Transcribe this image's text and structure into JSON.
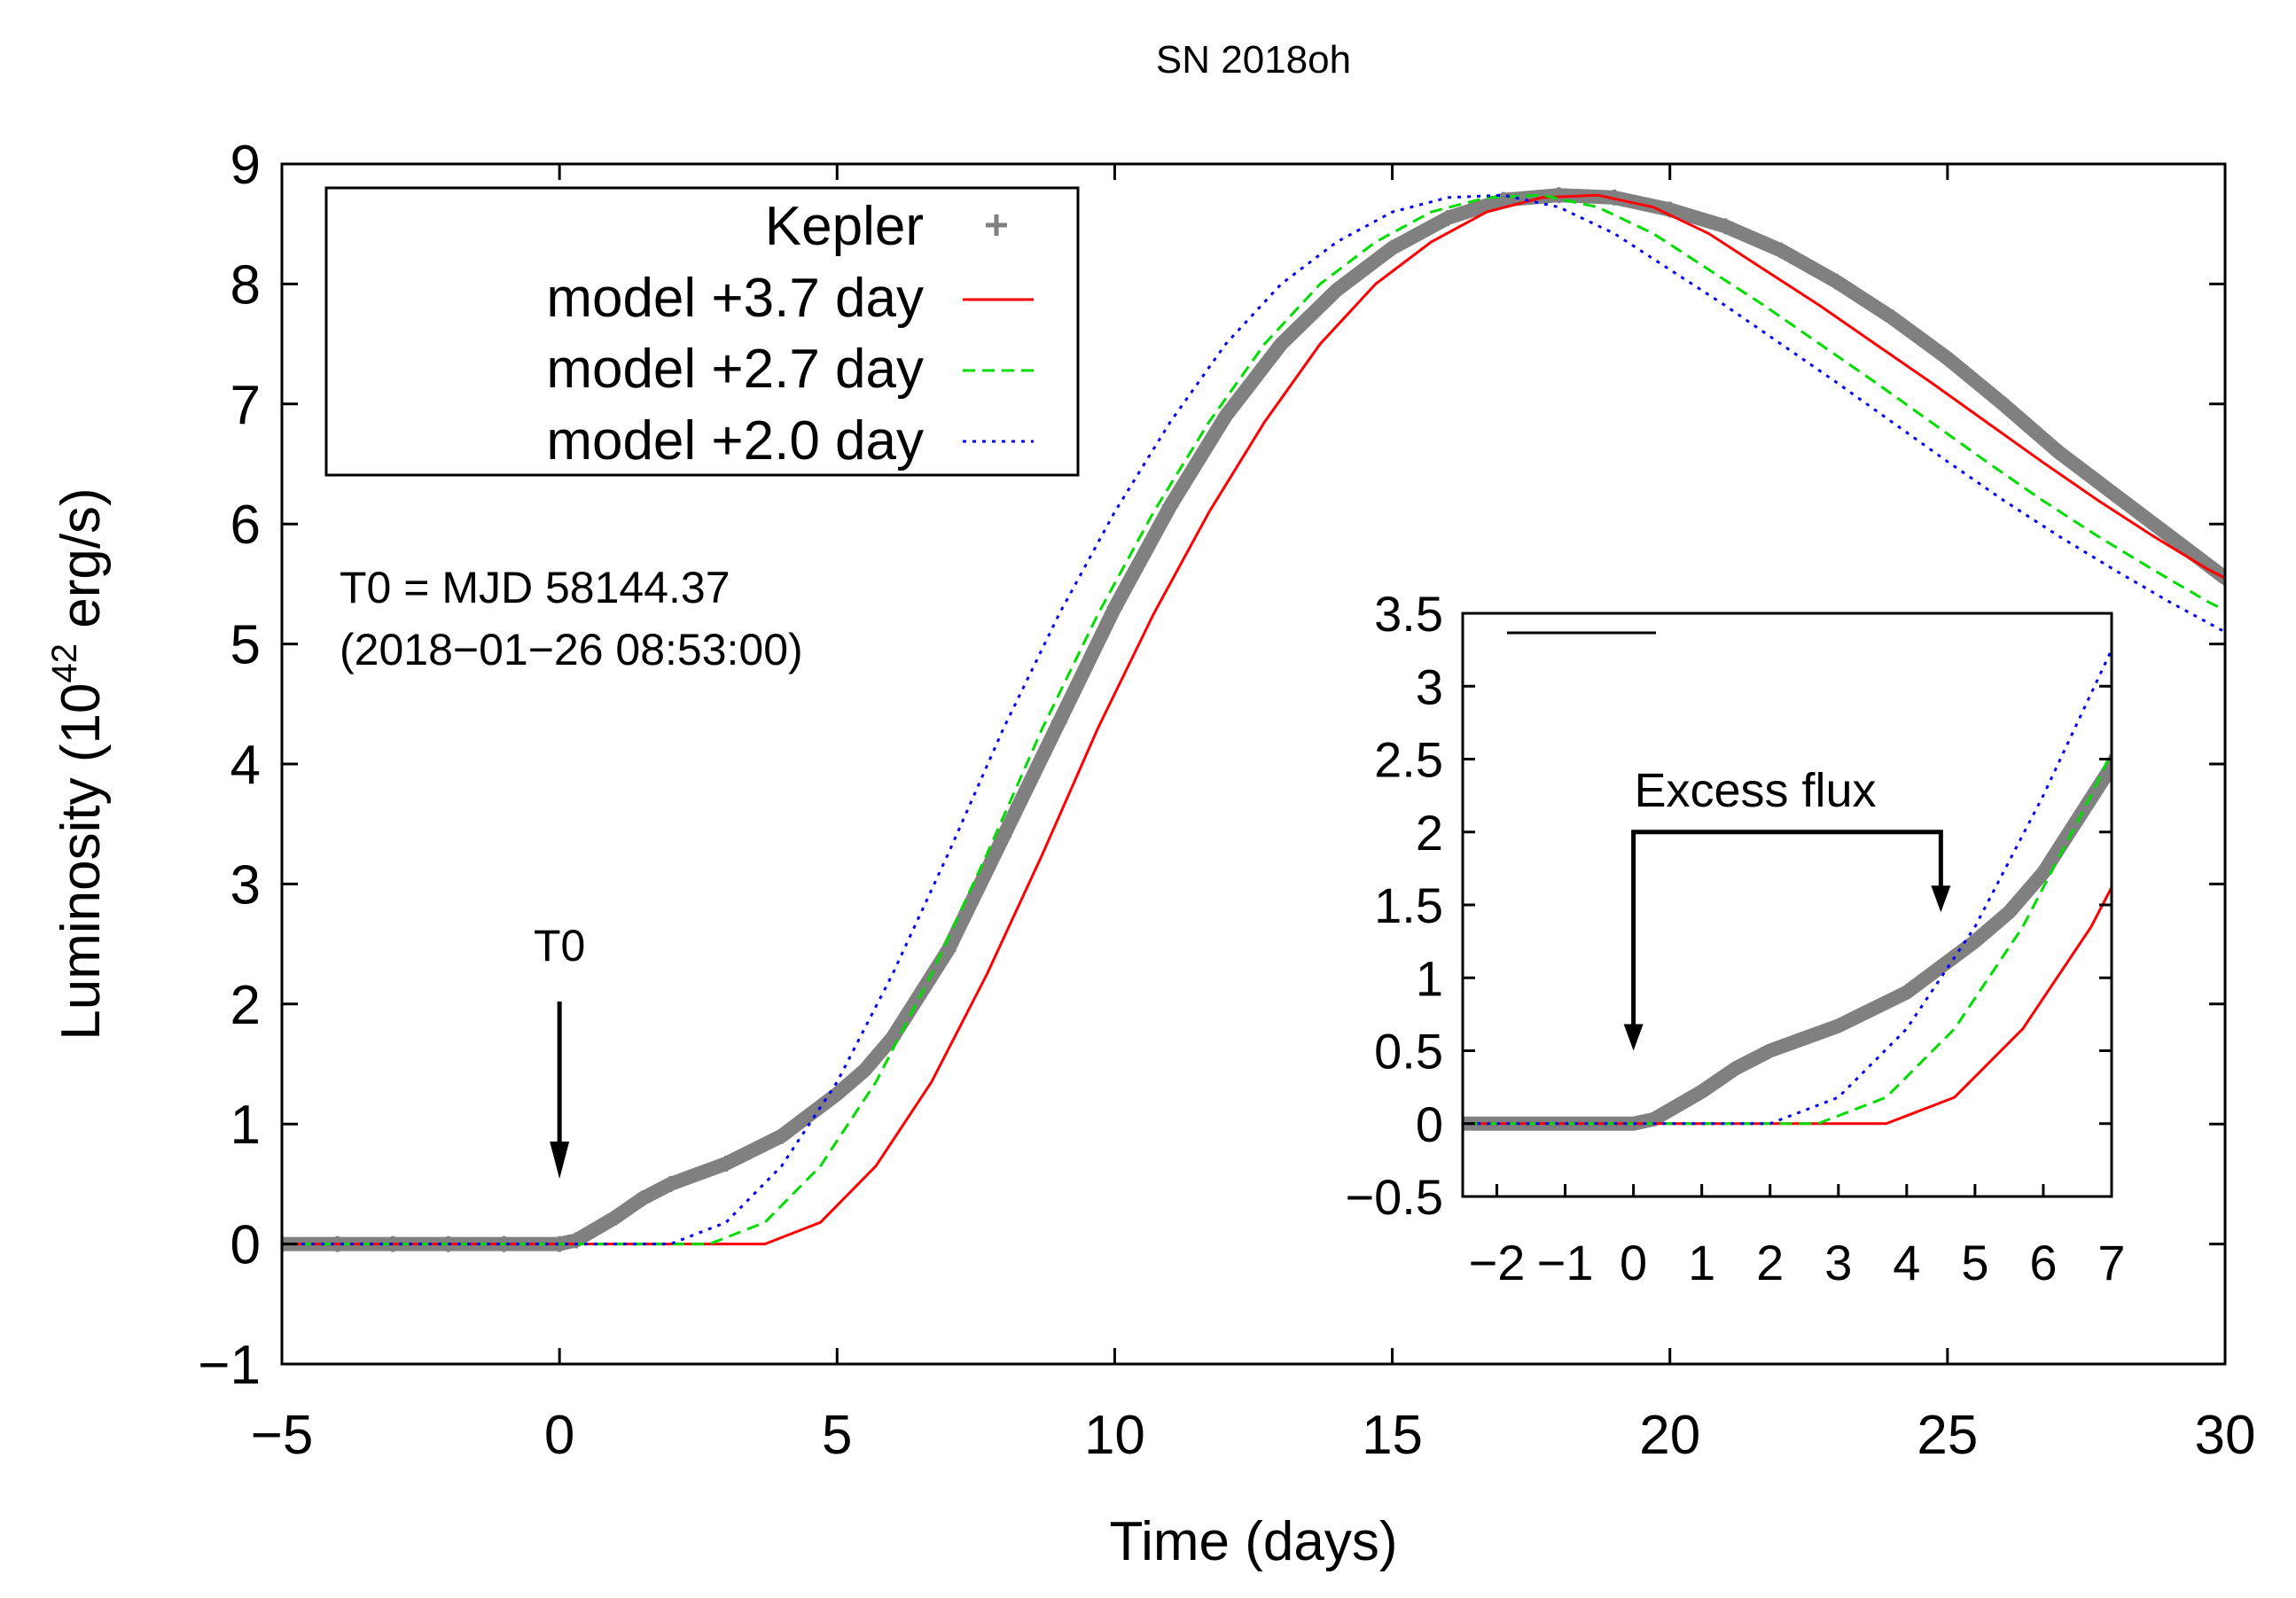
{
  "chart_data": {
    "type": "line",
    "title": "SN 2018oh",
    "xlabel": "Time (days)",
    "ylabel_main": "Luminosity (10",
    "ylabel_exp": "42",
    "ylabel_unit": " erg/s)",
    "xlim": [
      -5,
      30
    ],
    "ylim": [
      -1,
      9
    ],
    "xticks": [
      {
        "v": -5,
        "label": "−5"
      },
      {
        "v": 0,
        "label": "0"
      },
      {
        "v": 5,
        "label": "5"
      },
      {
        "v": 10,
        "label": "10"
      },
      {
        "v": 15,
        "label": "15"
      },
      {
        "v": 20,
        "label": "20"
      },
      {
        "v": 25,
        "label": "25"
      },
      {
        "v": 30,
        "label": "30"
      }
    ],
    "yticks": [
      {
        "v": -1,
        "label": "−1"
      },
      {
        "v": 0,
        "label": "0"
      },
      {
        "v": 1,
        "label": "1"
      },
      {
        "v": 2,
        "label": "2"
      },
      {
        "v": 3,
        "label": "3"
      },
      {
        "v": 4,
        "label": "4"
      },
      {
        "v": 5,
        "label": "5"
      },
      {
        "v": 6,
        "label": "6"
      },
      {
        "v": 7,
        "label": "7"
      },
      {
        "v": 8,
        "label": "8"
      },
      {
        "v": 9,
        "label": "9"
      }
    ],
    "legend": {
      "placement": "top-left",
      "entries": [
        {
          "label": "Kepler",
          "series": "kepler"
        },
        {
          "label": "model +3.7 day",
          "series": "m37"
        },
        {
          "label": "model +2.7 day",
          "series": "m27"
        },
        {
          "label": "model +2.0 day",
          "series": "m20"
        }
      ]
    },
    "annotations": {
      "t0_text": "T0 = MJD 58144.37",
      "t0_date": "(2018−01−26 08:53:00)",
      "t0_arrow_label": "T0",
      "t0_arrow_x": 0,
      "excess_label": "Excess flux"
    },
    "series": [
      {
        "id": "kepler",
        "name": "Kepler",
        "color": "#808080",
        "style": "points",
        "points": [
          [
            -5,
            0
          ],
          [
            -4,
            0
          ],
          [
            -3,
            0
          ],
          [
            -2,
            0
          ],
          [
            -1,
            0
          ],
          [
            0,
            0
          ],
          [
            0.3,
            0.03
          ],
          [
            1,
            0.22
          ],
          [
            1.5,
            0.38
          ],
          [
            2,
            0.5
          ],
          [
            3,
            0.67
          ],
          [
            4,
            0.9
          ],
          [
            5,
            1.25
          ],
          [
            5.5,
            1.45
          ],
          [
            6,
            1.72
          ],
          [
            7,
            2.45
          ],
          [
            8,
            3.4
          ],
          [
            9,
            4.35
          ],
          [
            10,
            5.3
          ],
          [
            11,
            6.15
          ],
          [
            12,
            6.9
          ],
          [
            13,
            7.5
          ],
          [
            14,
            7.95
          ],
          [
            15,
            8.3
          ],
          [
            16,
            8.55
          ],
          [
            17,
            8.7
          ],
          [
            18,
            8.74
          ],
          [
            19,
            8.72
          ],
          [
            20,
            8.62
          ],
          [
            21,
            8.48
          ],
          [
            22,
            8.28
          ],
          [
            23,
            8.02
          ],
          [
            24,
            7.72
          ],
          [
            25,
            7.38
          ],
          [
            26,
            7.0
          ],
          [
            27,
            6.6
          ],
          [
            28,
            6.25
          ],
          [
            29,
            5.9
          ],
          [
            30,
            5.55
          ]
        ]
      },
      {
        "id": "m37",
        "name": "model +3.7 day",
        "color": "#ff0000",
        "style": "solid",
        "points": [
          [
            -5,
            0
          ],
          [
            3.7,
            0
          ],
          [
            4.7,
            0.18
          ],
          [
            5.7,
            0.65
          ],
          [
            6.7,
            1.35
          ],
          [
            7.7,
            2.25
          ],
          [
            8.7,
            3.25
          ],
          [
            9.7,
            4.3
          ],
          [
            10.7,
            5.25
          ],
          [
            11.7,
            6.1
          ],
          [
            12.7,
            6.85
          ],
          [
            13.7,
            7.5
          ],
          [
            14.7,
            8.0
          ],
          [
            15.7,
            8.35
          ],
          [
            16.7,
            8.6
          ],
          [
            17.7,
            8.72
          ],
          [
            18.7,
            8.74
          ],
          [
            19.7,
            8.64
          ],
          [
            20.7,
            8.42
          ],
          [
            21.7,
            8.12
          ],
          [
            22.7,
            7.82
          ],
          [
            23.7,
            7.5
          ],
          [
            24.7,
            7.18
          ],
          [
            25.7,
            6.85
          ],
          [
            26.7,
            6.52
          ],
          [
            27.7,
            6.2
          ],
          [
            28.7,
            5.9
          ],
          [
            29.7,
            5.62
          ],
          [
            30,
            5.55
          ]
        ]
      },
      {
        "id": "m27",
        "name": "model +2.7 day",
        "color": "#00dd00",
        "style": "dashed",
        "points": [
          [
            -5,
            0
          ],
          [
            2.7,
            0
          ],
          [
            3.7,
            0.18
          ],
          [
            4.7,
            0.65
          ],
          [
            5.7,
            1.35
          ],
          [
            6.7,
            2.25
          ],
          [
            7.7,
            3.25
          ],
          [
            8.7,
            4.3
          ],
          [
            9.7,
            5.25
          ],
          [
            10.7,
            6.1
          ],
          [
            11.7,
            6.85
          ],
          [
            12.7,
            7.5
          ],
          [
            13.7,
            8.0
          ],
          [
            14.7,
            8.35
          ],
          [
            15.7,
            8.6
          ],
          [
            16.7,
            8.72
          ],
          [
            17.7,
            8.74
          ],
          [
            18.7,
            8.64
          ],
          [
            19.7,
            8.42
          ],
          [
            20.7,
            8.12
          ],
          [
            21.7,
            7.82
          ],
          [
            22.7,
            7.5
          ],
          [
            23.7,
            7.18
          ],
          [
            24.7,
            6.85
          ],
          [
            25.7,
            6.52
          ],
          [
            26.7,
            6.2
          ],
          [
            27.7,
            5.9
          ],
          [
            28.7,
            5.62
          ],
          [
            29.7,
            5.35
          ],
          [
            30,
            5.28
          ]
        ]
      },
      {
        "id": "m20",
        "name": "model +2.0 day",
        "color": "#0000ff",
        "style": "dotted",
        "points": [
          [
            -5,
            0
          ],
          [
            2.0,
            0
          ],
          [
            3.0,
            0.18
          ],
          [
            4.0,
            0.65
          ],
          [
            5.0,
            1.35
          ],
          [
            6.0,
            2.25
          ],
          [
            7.0,
            3.25
          ],
          [
            8.0,
            4.3
          ],
          [
            9.0,
            5.25
          ],
          [
            10.0,
            6.1
          ],
          [
            11.0,
            6.85
          ],
          [
            12.0,
            7.5
          ],
          [
            13.0,
            8.0
          ],
          [
            14.0,
            8.35
          ],
          [
            15.0,
            8.6
          ],
          [
            16.0,
            8.72
          ],
          [
            17.0,
            8.74
          ],
          [
            18.0,
            8.64
          ],
          [
            19.0,
            8.42
          ],
          [
            20.0,
            8.12
          ],
          [
            21.0,
            7.82
          ],
          [
            22.0,
            7.5
          ],
          [
            23.0,
            7.18
          ],
          [
            24.0,
            6.85
          ],
          [
            25.0,
            6.52
          ],
          [
            26.0,
            6.2
          ],
          [
            27.0,
            5.9
          ],
          [
            28.0,
            5.62
          ],
          [
            29.0,
            5.35
          ],
          [
            30,
            5.1
          ]
        ]
      }
    ],
    "inset": {
      "xlim": [
        -2.5,
        7
      ],
      "ylim": [
        -0.5,
        3.5
      ],
      "xticks": [
        {
          "v": -2,
          "label": "−2"
        },
        {
          "v": -1,
          "label": "−1"
        },
        {
          "v": 0,
          "label": "0"
        },
        {
          "v": 1,
          "label": "1"
        },
        {
          "v": 2,
          "label": "2"
        },
        {
          "v": 3,
          "label": "3"
        },
        {
          "v": 4,
          "label": "4"
        },
        {
          "v": 5,
          "label": "5"
        },
        {
          "v": 6,
          "label": "6"
        },
        {
          "v": 7,
          "label": "7"
        }
      ],
      "yticks": [
        {
          "v": -0.5,
          "label": "−0.5"
        },
        {
          "v": 0,
          "label": "0"
        },
        {
          "v": 0.5,
          "label": "0.5"
        },
        {
          "v": 1,
          "label": "1"
        },
        {
          "v": 1.5,
          "label": "1.5"
        },
        {
          "v": 2,
          "label": "2"
        },
        {
          "v": 2.5,
          "label": "2.5"
        },
        {
          "v": 3,
          "label": "3"
        },
        {
          "v": 3.5,
          "label": "3.5"
        }
      ],
      "excess_arrow": {
        "x_start": 0,
        "x_end": 4.5,
        "y_top": 2.0,
        "y_left_tip": 0.5,
        "y_right_tip": 1.45
      }
    }
  }
}
